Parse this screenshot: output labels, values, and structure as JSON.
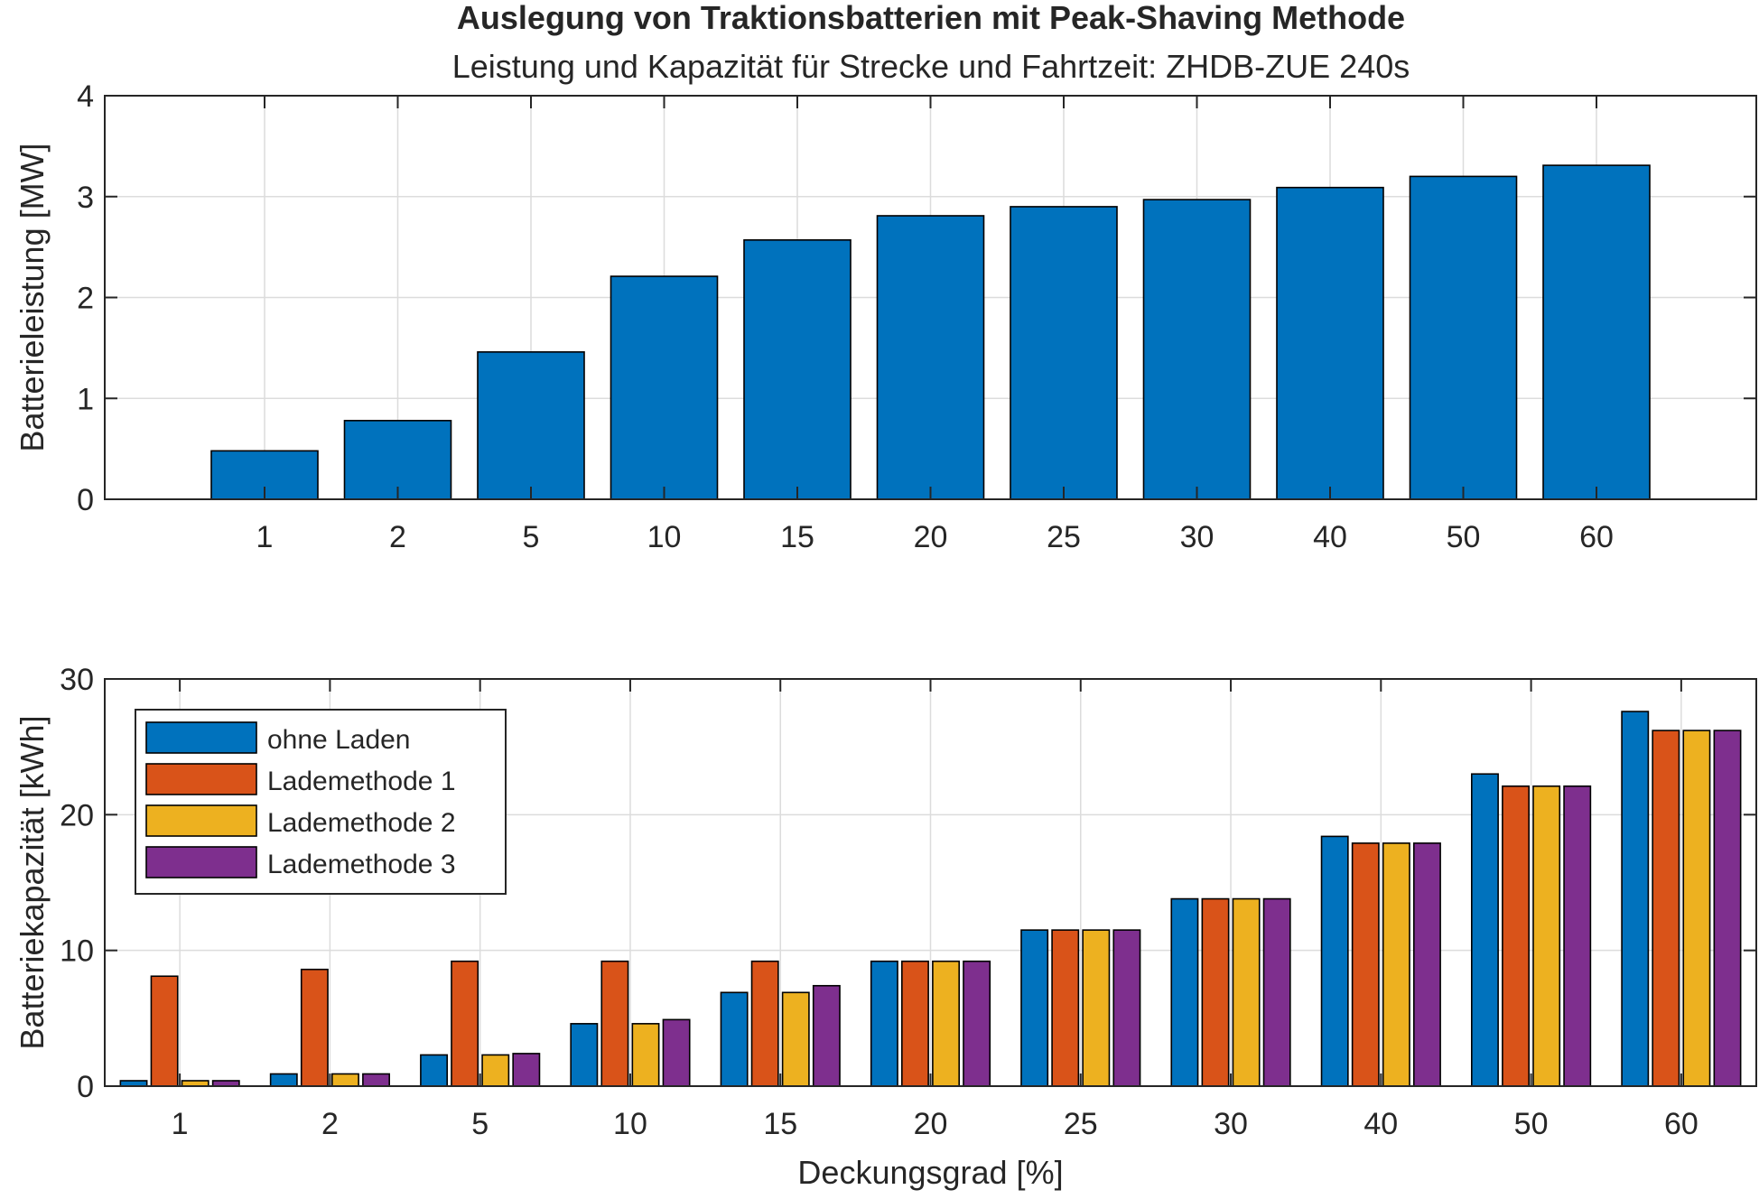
{
  "figure": {
    "title": "Auslegung von Traktionsbatterien mit Peak-Shaving Methode",
    "subtitle": "Leistung und Kapazität für Strecke und Fahrtzeit: ZHDB-ZUE 240s"
  },
  "chart_data": [
    {
      "type": "bar",
      "categories": [
        "1",
        "2",
        "5",
        "10",
        "15",
        "20",
        "25",
        "30",
        "40",
        "50",
        "60"
      ],
      "series": [
        {
          "values": [
            0.48,
            0.78,
            1.46,
            2.21,
            2.57,
            2.81,
            2.9,
            2.97,
            3.09,
            3.2,
            3.31
          ],
          "color": "#0072BD"
        }
      ],
      "xlabel": "",
      "ylabel": "Batterieleistung [MW]",
      "ylim": [
        0,
        4
      ],
      "yticks": [
        0,
        1,
        2,
        3,
        4
      ],
      "grid": true
    },
    {
      "type": "bar",
      "categories": [
        "1",
        "2",
        "5",
        "10",
        "15",
        "20",
        "25",
        "30",
        "40",
        "50",
        "60"
      ],
      "series": [
        {
          "name": "ohne Laden",
          "values": [
            0.4,
            0.9,
            2.3,
            4.6,
            6.9,
            9.2,
            11.5,
            13.8,
            18.4,
            23.0,
            27.6
          ],
          "color": "#0072BD"
        },
        {
          "name": "Lademethode 1",
          "values": [
            8.1,
            8.6,
            9.2,
            9.2,
            9.2,
            9.2,
            11.5,
            13.8,
            17.9,
            22.1,
            26.2
          ],
          "color": "#D95319"
        },
        {
          "name": "Lademethode 2",
          "values": [
            0.4,
            0.9,
            2.3,
            4.6,
            6.9,
            9.2,
            11.5,
            13.8,
            17.9,
            22.1,
            26.2
          ],
          "color": "#EDB120"
        },
        {
          "name": "Lademethode 3",
          "values": [
            0.4,
            0.9,
            2.4,
            4.9,
            7.4,
            9.2,
            11.5,
            13.8,
            17.9,
            22.1,
            26.2
          ],
          "color": "#7E2F8E"
        }
      ],
      "xlabel": "Deckungsgrad [%]",
      "ylabel": "Batteriekapazität [kWh]",
      "ylim": [
        0,
        30
      ],
      "yticks": [
        0,
        10,
        20,
        30
      ],
      "grid": true,
      "legend": "top-left"
    }
  ]
}
